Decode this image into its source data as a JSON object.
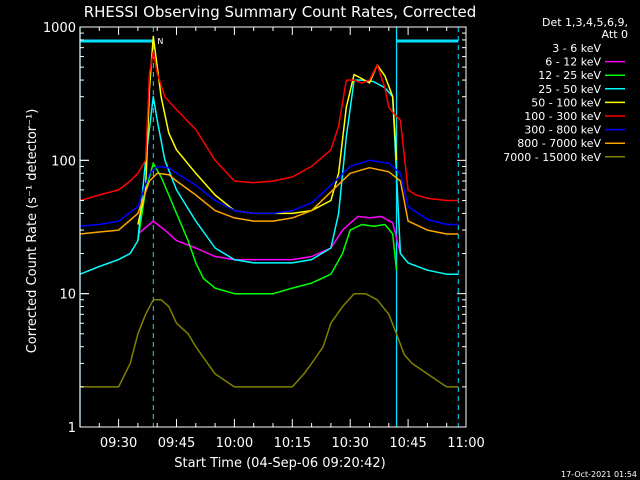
{
  "chart_data": {
    "type": "line",
    "title": "RHESSI Observing Summary Count Rates, Corrected",
    "xlabel": "Start Time (04-Sep-06 09:20:42)",
    "ylabel": "Corrected Count Rate (s⁻¹ detector⁻¹)",
    "ylog": true,
    "ylim": [
      1,
      1000
    ],
    "yticks": [
      1,
      10,
      100,
      1000
    ],
    "ytick_labels": [
      "1",
      "10",
      "100",
      "1000"
    ],
    "xlim": [
      "09:20",
      "11:00"
    ],
    "xticks": [
      "09:30",
      "09:45",
      "10:00",
      "10:15",
      "10:30",
      "10:45",
      "11:00"
    ],
    "legend_header": [
      "Det 1,3,4,5,6,9,",
      "Att 0"
    ],
    "legend_position": "right",
    "timestamp": "17-Oct-2021 01:54",
    "marker": "N",
    "night_lines": [
      "09:20",
      "10:42"
    ],
    "day_lines": [
      "09:39",
      "10:58"
    ],
    "attenuator_bars": [
      [
        "09:20",
        "09:39"
      ],
      [
        "10:42",
        "10:58"
      ]
    ],
    "series": [
      {
        "name": "3 - 6 keV",
        "color": "#000000",
        "x": [],
        "values": []
      },
      {
        "name": "6 - 12 keV",
        "color": "#ff00ff",
        "x": [
          "09:20",
          "09:30",
          "09:35",
          "09:39",
          "09:42",
          "09:45",
          "09:50",
          "09:55",
          "10:00",
          "10:05",
          "10:10",
          "10:15",
          "10:20",
          "10:25",
          "10:28",
          "10:32",
          "10:35",
          "10:38",
          "10:41",
          "10:43",
          "10:46",
          "10:50",
          "10:55",
          "10:58"
        ],
        "values": [
          null,
          null,
          28,
          35,
          30,
          25,
          22,
          19,
          18,
          18,
          18,
          18,
          19,
          22,
          30,
          38,
          37,
          38,
          34,
          20,
          null,
          null,
          null,
          null
        ]
      },
      {
        "name": "12 - 25 keV",
        "color": "#00ff00",
        "x": [
          "09:20",
          "09:35",
          "09:37",
          "09:39",
          "09:41",
          "09:43",
          "09:45",
          "09:48",
          "09:50",
          "09:52",
          "09:55",
          "10:00",
          "10:05",
          "10:10",
          "10:15",
          "10:20",
          "10:25",
          "10:28",
          "10:30",
          "10:33",
          "10:36",
          "10:39",
          "10:41",
          "10:42"
        ],
        "values": [
          null,
          25,
          60,
          95,
          75,
          55,
          40,
          25,
          17,
          13,
          11,
          10,
          10,
          10,
          11,
          12,
          14,
          20,
          30,
          33,
          32,
          33,
          28,
          15
        ]
      },
      {
        "name": "25 - 50 keV",
        "color": "#00ffff",
        "x": [
          "09:20",
          "09:25",
          "09:30",
          "09:33",
          "09:35",
          "09:37",
          "09:39",
          "09:40",
          "09:42",
          "09:45",
          "09:50",
          "09:55",
          "10:00",
          "10:05",
          "10:10",
          "10:15",
          "10:20",
          "10:25",
          "10:27",
          "10:29",
          "10:31",
          "10:33",
          "10:36",
          "10:39",
          "10:41",
          "10:43",
          "10:45",
          "10:50",
          "10:55",
          "10:58"
        ],
        "values": [
          14,
          16,
          18,
          20,
          25,
          100,
          300,
          200,
          100,
          60,
          35,
          22,
          18,
          17,
          17,
          17,
          18,
          22,
          40,
          150,
          400,
          400,
          390,
          350,
          300,
          20,
          17,
          15,
          14,
          14
        ]
      },
      {
        "name": "50 - 100 keV",
        "color": "#ffff00",
        "x": [
          "09:20",
          "09:30",
          "09:35",
          "09:37",
          "09:38",
          "09:39",
          "09:41",
          "09:43",
          "09:45",
          "09:50",
          "09:55",
          "10:00",
          "10:05",
          "10:10",
          "10:15",
          "10:20",
          "10:25",
          "10:27",
          "10:29",
          "10:31",
          "10:33",
          "10:35",
          "10:37",
          "10:39",
          "10:41",
          "10:42"
        ],
        "values": [
          null,
          null,
          33,
          60,
          350,
          850,
          300,
          160,
          120,
          80,
          55,
          42,
          40,
          40,
          40,
          42,
          50,
          80,
          250,
          440,
          410,
          380,
          520,
          430,
          300,
          100
        ]
      },
      {
        "name": "100 - 300 keV",
        "color": "#ff0000",
        "x": [
          "09:20",
          "09:25",
          "09:30",
          "09:33",
          "09:35",
          "09:37",
          "09:38",
          "09:39",
          "09:40",
          "09:42",
          "09:45",
          "09:50",
          "09:55",
          "10:00",
          "10:05",
          "10:10",
          "10:15",
          "10:20",
          "10:25",
          "10:27",
          "10:29",
          "10:31",
          "10:33",
          "10:35",
          "10:37",
          "10:39",
          "10:40",
          "10:41",
          "10:43",
          "10:45",
          "10:47",
          "10:50",
          "10:55",
          "10:58"
        ],
        "values": [
          50,
          55,
          60,
          70,
          80,
          100,
          450,
          650,
          450,
          300,
          240,
          170,
          100,
          70,
          68,
          70,
          75,
          90,
          120,
          180,
          400,
          400,
          380,
          400,
          520,
          350,
          250,
          230,
          200,
          60,
          55,
          52,
          50,
          50
        ]
      },
      {
        "name": "300 - 800 keV",
        "color": "#0000ff",
        "x": [
          "09:20",
          "09:25",
          "09:30",
          "09:35",
          "09:38",
          "09:40",
          "09:43",
          "09:45",
          "09:50",
          "09:55",
          "10:00",
          "10:05",
          "10:10",
          "10:15",
          "10:20",
          "10:25",
          "10:30",
          "10:35",
          "10:40",
          "10:43",
          "10:45",
          "10:50",
          "10:55",
          "10:58"
        ],
        "values": [
          32,
          33,
          35,
          45,
          80,
          90,
          88,
          80,
          65,
          50,
          42,
          40,
          40,
          42,
          48,
          65,
          90,
          100,
          95,
          80,
          45,
          36,
          33,
          33
        ]
      },
      {
        "name": "800 - 7000 keV",
        "color": "#ffa500",
        "x": [
          "09:20",
          "09:25",
          "09:30",
          "09:35",
          "09:38",
          "09:40",
          "09:43",
          "09:45",
          "09:50",
          "09:55",
          "10:00",
          "10:05",
          "10:10",
          "10:15",
          "10:20",
          "10:25",
          "10:30",
          "10:35",
          "10:40",
          "10:43",
          "10:45",
          "10:50",
          "10:55",
          "10:58"
        ],
        "values": [
          28,
          29,
          30,
          40,
          70,
          80,
          78,
          70,
          55,
          42,
          37,
          35,
          35,
          37,
          42,
          58,
          80,
          88,
          82,
          70,
          35,
          30,
          28,
          28
        ]
      },
      {
        "name": "7000 - 15000 keV",
        "color": "#808000",
        "x": [
          "09:20",
          "09:25",
          "09:30",
          "09:33",
          "09:35",
          "09:37",
          "09:39",
          "09:41",
          "09:43",
          "09:45",
          "09:48",
          "09:50",
          "09:55",
          "10:00",
          "10:05",
          "10:10",
          "10:15",
          "10:18",
          "10:20",
          "10:23",
          "10:25",
          "10:28",
          "10:31",
          "10:34",
          "10:37",
          "10:40",
          "10:42",
          "10:44",
          "10:46",
          "10:50",
          "10:55",
          "10:58"
        ],
        "values": [
          2,
          2,
          2,
          3,
          5,
          7,
          9,
          9,
          8,
          6,
          5,
          4,
          2.5,
          2,
          2,
          2,
          2,
          2.5,
          3,
          4,
          6,
          8,
          10,
          10,
          9,
          7,
          5,
          3.5,
          3,
          2.5,
          2,
          2
        ]
      }
    ]
  }
}
